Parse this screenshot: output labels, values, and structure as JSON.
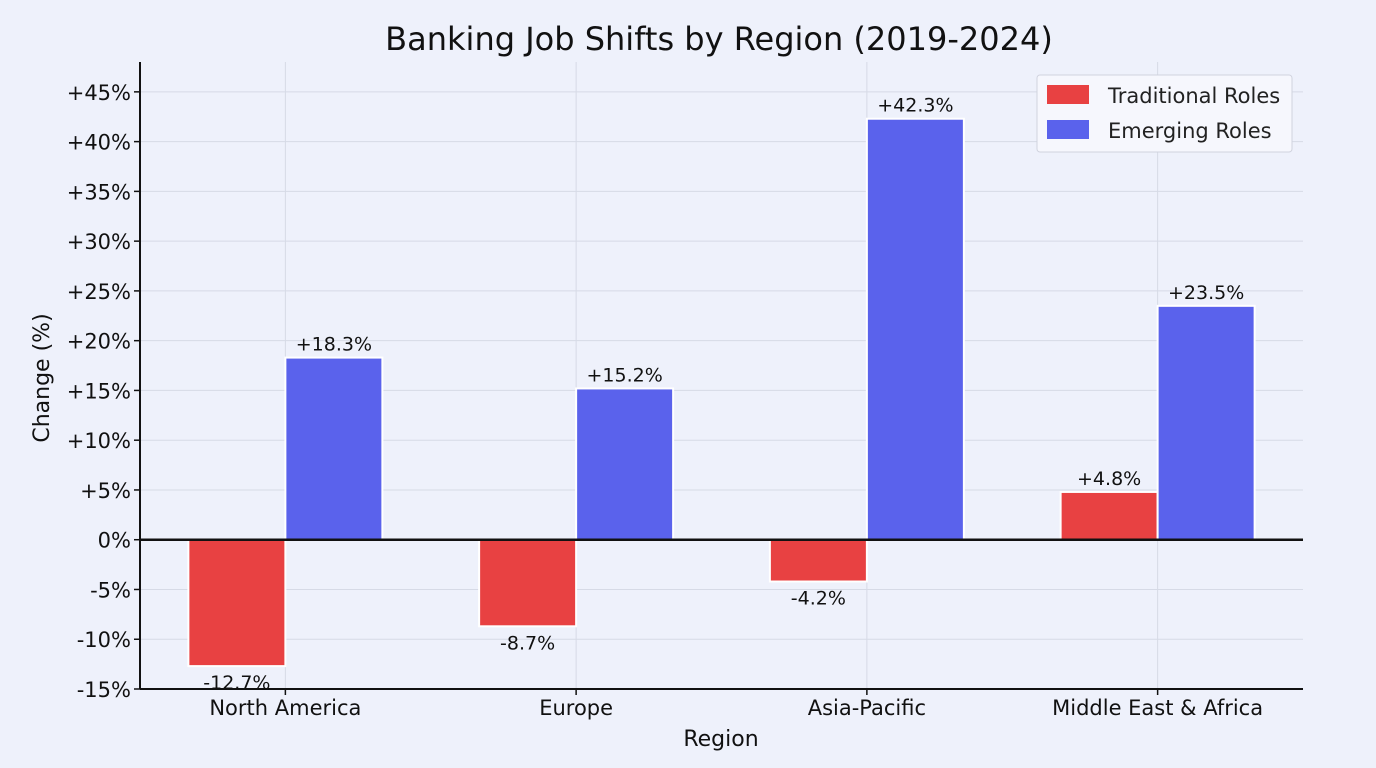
{
  "chart_data": {
    "type": "bar",
    "title": "Banking Job Shifts by Region (2019-2024)",
    "xlabel": "Region",
    "ylabel": "Change (%)",
    "categories": [
      "North America",
      "Europe",
      "Asia-Pacific",
      "Middle East & Africa"
    ],
    "series": [
      {
        "name": "Traditional Roles",
        "color": "#e84142",
        "values": [
          -12.7,
          -8.7,
          -4.2,
          4.8
        ],
        "labels": [
          "-12.7%",
          "-8.7%",
          "-4.2%",
          "+4.8%"
        ]
      },
      {
        "name": "Emerging Roles",
        "color": "#5a62ec",
        "values": [
          18.3,
          15.2,
          42.3,
          23.5
        ],
        "labels": [
          "+18.3%",
          "+15.2%",
          "+42.3%",
          "+23.5%"
        ]
      }
    ],
    "ylim": [
      -15,
      48
    ],
    "yticks": [
      -15,
      -10,
      -5,
      0,
      5,
      10,
      15,
      20,
      25,
      30,
      35,
      40,
      45
    ],
    "ytick_labels": [
      "-15%",
      "-10%",
      "-5%",
      "0%",
      "+5%",
      "+10%",
      "+15%",
      "+20%",
      "+25%",
      "+30%",
      "+35%",
      "+40%",
      "+45%"
    ],
    "grid": true,
    "legend_position": "top-right"
  }
}
